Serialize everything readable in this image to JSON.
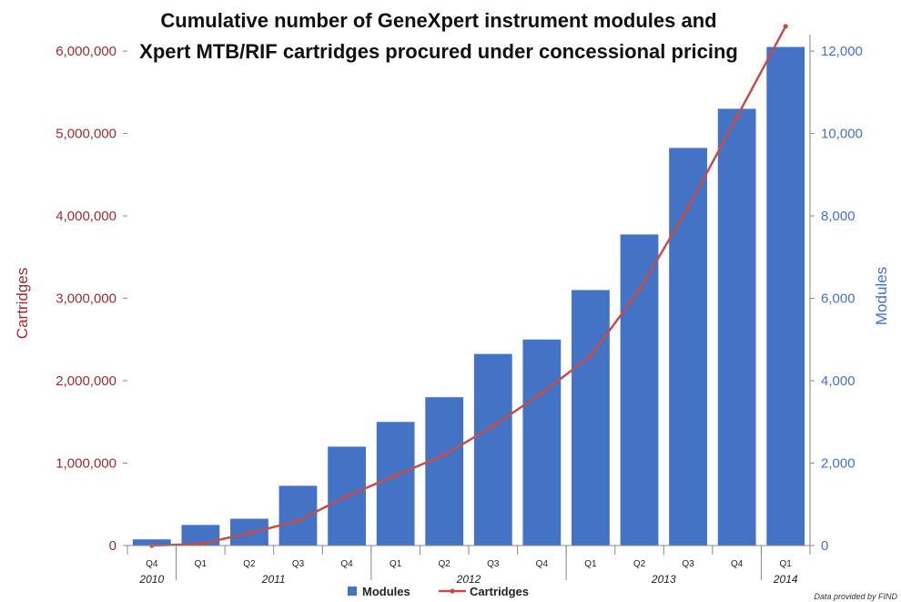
{
  "chart_data": {
    "type": "bar",
    "title_lines": [
      "Cumulative number of GeneXpert instrument modules and",
      "Xpert MTB/RIF cartridges procured under concessional pricing"
    ],
    "categories": [
      "Q4",
      "Q1",
      "Q2",
      "Q3",
      "Q4",
      "Q1",
      "Q2",
      "Q3",
      "Q4",
      "Q1",
      "Q2",
      "Q3",
      "Q4",
      "Q1"
    ],
    "year_labels": [
      "2010",
      "2011",
      "2012",
      "2013",
      "2014"
    ],
    "year_groups": [
      {
        "label": "2010",
        "start": 0,
        "end": 0
      },
      {
        "label": "2011",
        "start": 1,
        "end": 4
      },
      {
        "label": "2012",
        "start": 5,
        "end": 8
      },
      {
        "label": "2013",
        "start": 9,
        "end": 12
      },
      {
        "label": "2014",
        "start": 13,
        "end": 13
      }
    ],
    "series": [
      {
        "name": "Modules",
        "type": "bar",
        "axis": "right",
        "color": "#4472c4",
        "values": [
          150,
          500,
          650,
          1450,
          2400,
          3000,
          3600,
          4650,
          5000,
          6200,
          7550,
          9650,
          10600,
          12100
        ]
      },
      {
        "name": "Cartridges",
        "type": "line",
        "axis": "left",
        "color": "#c0504d",
        "values": [
          0,
          20000,
          150000,
          300000,
          600000,
          850000,
          1100000,
          1450000,
          1850000,
          2300000,
          3100000,
          4100000,
          5200000,
          6300000
        ]
      }
    ],
    "ylabel_left": "Cartridges",
    "ylabel_right": "Modules",
    "ylim_left": [
      0,
      6200000
    ],
    "ylim_right": [
      0,
      12400
    ],
    "yticks_left": [
      0,
      1000000,
      2000000,
      3000000,
      4000000,
      5000000,
      6000000
    ],
    "yticks_left_labels": [
      "0",
      "1,000,000",
      "2,000,000",
      "3,000,000",
      "4,000,000",
      "5,000,000",
      "6,000,000"
    ],
    "yticks_right": [
      0,
      2000,
      4000,
      6000,
      8000,
      10000,
      12000
    ],
    "yticks_right_labels": [
      "0",
      "2,000",
      "4,000",
      "6,000",
      "8,000",
      "10,000",
      "12,000"
    ],
    "legend_position": "bottom",
    "grid": false,
    "credit": "Data provided by FIND"
  }
}
